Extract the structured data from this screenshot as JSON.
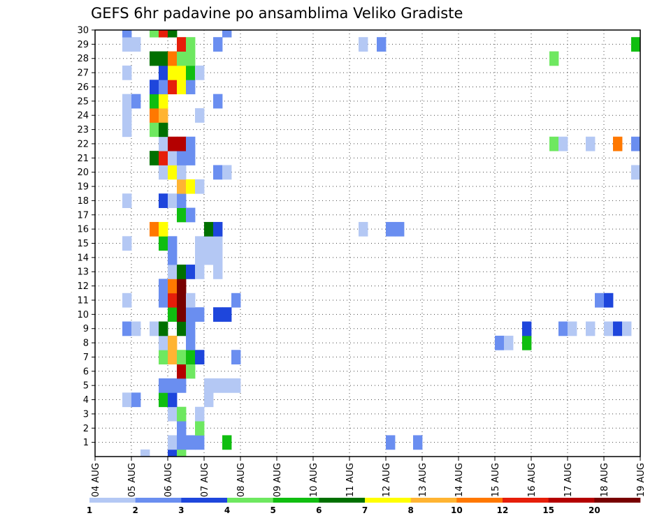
{
  "title": "GEFS 6hr padavine po ansamblima Veliko Gradiste",
  "colors": {
    "grid": "#444444",
    "frame": "#000000",
    "bins": [
      "#b4c8f4",
      "#6a8ef0",
      "#1e46dc",
      "#6ee860",
      "#10be10",
      "#007000",
      "#ffff00",
      "#ffb432",
      "#ff7800",
      "#e61e0a",
      "#b40000",
      "#780000"
    ]
  },
  "chart_data": {
    "type": "heatmap",
    "title": "GEFS 6hr padavine po ansamblima Veliko Gradiste",
    "xlabel": "",
    "ylabel": "",
    "x_tick_labels": [
      "04 AUG",
      "05 AUG",
      "06 AUG",
      "07 AUG",
      "08 AUG",
      "09 AUG",
      "10 AUG",
      "11 AUG",
      "12 AUG",
      "13 AUG",
      "14 AUG",
      "15 AUG",
      "16 AUG",
      "17 AUG",
      "18 AUG",
      "19 AUG"
    ],
    "y_tick_labels": [
      "1",
      "2",
      "3",
      "4",
      "5",
      "6",
      "7",
      "8",
      "9",
      "10",
      "11",
      "12",
      "13",
      "14",
      "15",
      "16",
      "17",
      "18",
      "19",
      "20",
      "21",
      "22",
      "23",
      "24",
      "25",
      "26",
      "27",
      "28",
      "29",
      "30"
    ],
    "y_range": [
      0,
      30
    ],
    "time_step_hours": 6,
    "time_steps": 60,
    "grid": true,
    "colorbar": {
      "position": "bottom",
      "labels": [
        "1",
        "2",
        "3",
        "4",
        "5",
        "6",
        "7",
        "8",
        "10",
        "12",
        "15",
        "20"
      ]
    },
    "cells": [
      [
        0,
        5,
        0
      ],
      [
        0,
        8,
        2
      ],
      [
        0,
        9,
        3
      ],
      [
        1,
        8,
        0
      ],
      [
        1,
        9,
        1
      ],
      [
        1,
        10,
        1
      ],
      [
        1,
        11,
        1
      ],
      [
        1,
        14,
        4
      ],
      [
        1,
        32,
        1
      ],
      [
        1,
        35,
        1
      ],
      [
        2,
        9,
        1
      ],
      [
        2,
        11,
        3
      ],
      [
        3,
        8,
        0
      ],
      [
        3,
        9,
        3
      ],
      [
        3,
        11,
        0
      ],
      [
        4,
        3,
        0
      ],
      [
        4,
        4,
        1
      ],
      [
        4,
        7,
        4
      ],
      [
        4,
        8,
        2
      ],
      [
        4,
        12,
        0
      ],
      [
        5,
        7,
        1
      ],
      [
        5,
        8,
        1
      ],
      [
        5,
        9,
        1
      ],
      [
        5,
        12,
        0
      ],
      [
        5,
        13,
        0
      ],
      [
        5,
        14,
        0
      ],
      [
        5,
        15,
        0
      ],
      [
        6,
        9,
        10
      ],
      [
        6,
        10,
        3
      ],
      [
        7,
        7,
        3
      ],
      [
        7,
        8,
        7
      ],
      [
        7,
        9,
        3
      ],
      [
        7,
        10,
        4
      ],
      [
        7,
        11,
        2
      ],
      [
        7,
        15,
        1
      ],
      [
        8,
        7,
        0
      ],
      [
        8,
        8,
        7
      ],
      [
        8,
        10,
        1
      ],
      [
        8,
        44,
        1
      ],
      [
        8,
        45,
        0
      ],
      [
        8,
        47,
        4
      ],
      [
        9,
        3,
        1
      ],
      [
        9,
        4,
        0
      ],
      [
        9,
        6,
        0
      ],
      [
        9,
        7,
        5
      ],
      [
        9,
        9,
        5
      ],
      [
        9,
        10,
        1
      ],
      [
        9,
        47,
        2
      ],
      [
        9,
        51,
        1
      ],
      [
        9,
        52,
        0
      ],
      [
        9,
        54,
        0
      ],
      [
        9,
        56,
        0
      ],
      [
        9,
        57,
        2
      ],
      [
        9,
        58,
        0
      ],
      [
        10,
        8,
        4
      ],
      [
        10,
        9,
        11
      ],
      [
        10,
        10,
        1
      ],
      [
        10,
        11,
        1
      ],
      [
        10,
        13,
        2
      ],
      [
        10,
        14,
        2
      ],
      [
        11,
        3,
        0
      ],
      [
        11,
        7,
        1
      ],
      [
        11,
        8,
        9
      ],
      [
        11,
        9,
        11
      ],
      [
        11,
        10,
        0
      ],
      [
        11,
        15,
        1
      ],
      [
        11,
        55,
        1
      ],
      [
        11,
        56,
        2
      ],
      [
        12,
        7,
        1
      ],
      [
        12,
        8,
        8
      ],
      [
        12,
        9,
        11
      ],
      [
        13,
        8,
        0
      ],
      [
        13,
        9,
        5
      ],
      [
        13,
        10,
        2
      ],
      [
        13,
        11,
        0
      ],
      [
        13,
        13,
        0
      ],
      [
        14,
        8,
        1
      ],
      [
        14,
        11,
        0
      ],
      [
        14,
        12,
        0
      ],
      [
        14,
        13,
        0
      ],
      [
        15,
        3,
        0
      ],
      [
        15,
        7,
        4
      ],
      [
        15,
        8,
        1
      ],
      [
        15,
        11,
        0
      ],
      [
        15,
        12,
        0
      ],
      [
        15,
        13,
        0
      ],
      [
        16,
        6,
        8
      ],
      [
        16,
        7,
        6
      ],
      [
        16,
        12,
        5
      ],
      [
        16,
        13,
        2
      ],
      [
        16,
        29,
        0
      ],
      [
        16,
        32,
        1
      ],
      [
        16,
        33,
        1
      ],
      [
        17,
        9,
        4
      ],
      [
        17,
        10,
        1
      ],
      [
        18,
        3,
        0
      ],
      [
        18,
        7,
        2
      ],
      [
        18,
        8,
        0
      ],
      [
        18,
        9,
        1
      ],
      [
        19,
        9,
        7
      ],
      [
        19,
        10,
        6
      ],
      [
        19,
        11,
        0
      ],
      [
        20,
        7,
        0
      ],
      [
        20,
        8,
        6
      ],
      [
        20,
        9,
        0
      ],
      [
        20,
        13,
        1
      ],
      [
        20,
        14,
        0
      ],
      [
        20,
        59,
        0
      ],
      [
        21,
        6,
        5
      ],
      [
        21,
        7,
        9
      ],
      [
        21,
        8,
        0
      ],
      [
        21,
        9,
        1
      ],
      [
        21,
        10,
        1
      ],
      [
        22,
        7,
        0
      ],
      [
        22,
        8,
        10
      ],
      [
        22,
        9,
        10
      ],
      [
        22,
        10,
        1
      ],
      [
        22,
        50,
        3
      ],
      [
        22,
        51,
        0
      ],
      [
        22,
        54,
        0
      ],
      [
        22,
        57,
        8
      ],
      [
        22,
        59,
        1
      ],
      [
        23,
        3,
        0
      ],
      [
        23,
        6,
        3
      ],
      [
        23,
        7,
        5
      ],
      [
        24,
        3,
        0
      ],
      [
        24,
        6,
        8
      ],
      [
        24,
        7,
        7
      ],
      [
        24,
        11,
        0
      ],
      [
        25,
        3,
        0
      ],
      [
        25,
        4,
        1
      ],
      [
        25,
        6,
        4
      ],
      [
        25,
        7,
        6
      ],
      [
        25,
        13,
        1
      ],
      [
        26,
        6,
        2
      ],
      [
        26,
        7,
        1
      ],
      [
        26,
        8,
        9
      ],
      [
        26,
        9,
        6
      ],
      [
        26,
        10,
        1
      ],
      [
        27,
        3,
        0
      ],
      [
        27,
        7,
        2
      ],
      [
        27,
        8,
        6
      ],
      [
        27,
        9,
        6
      ],
      [
        27,
        10,
        4
      ],
      [
        27,
        11,
        0
      ],
      [
        28,
        6,
        5
      ],
      [
        28,
        7,
        5
      ],
      [
        28,
        8,
        8
      ],
      [
        28,
        9,
        3
      ],
      [
        28,
        10,
        3
      ],
      [
        28,
        50,
        3
      ],
      [
        29,
        3,
        0
      ],
      [
        29,
        4,
        0
      ],
      [
        29,
        9,
        9
      ],
      [
        29,
        10,
        3
      ],
      [
        29,
        13,
        1
      ],
      [
        29,
        29,
        0
      ],
      [
        29,
        31,
        1
      ],
      [
        29,
        59,
        4
      ],
      [
        30,
        3,
        1
      ],
      [
        30,
        6,
        3
      ],
      [
        30,
        7,
        9
      ],
      [
        30,
        8,
        5
      ],
      [
        30,
        14,
        1
      ]
    ]
  }
}
